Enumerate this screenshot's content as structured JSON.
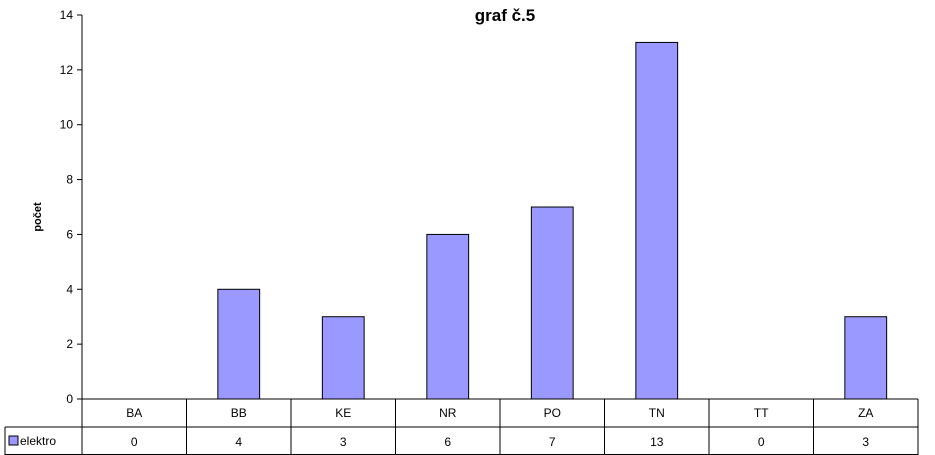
{
  "chart_data": {
    "type": "bar",
    "title": "graf č.5",
    "xlabel": "",
    "ylabel": "počet",
    "categories": [
      "BA",
      "BB",
      "KE",
      "NR",
      "PO",
      "TN",
      "TT",
      "ZA"
    ],
    "series": [
      {
        "name": "elektro",
        "values": [
          0,
          4,
          3,
          6,
          7,
          13,
          0,
          3
        ],
        "color": "#9999ff"
      }
    ],
    "ylim": [
      0,
      14
    ],
    "yticks": [
      "0",
      "2",
      "4",
      "6",
      "8",
      "10",
      "12",
      "14"
    ],
    "grid": false,
    "legend": "data-table-left"
  }
}
